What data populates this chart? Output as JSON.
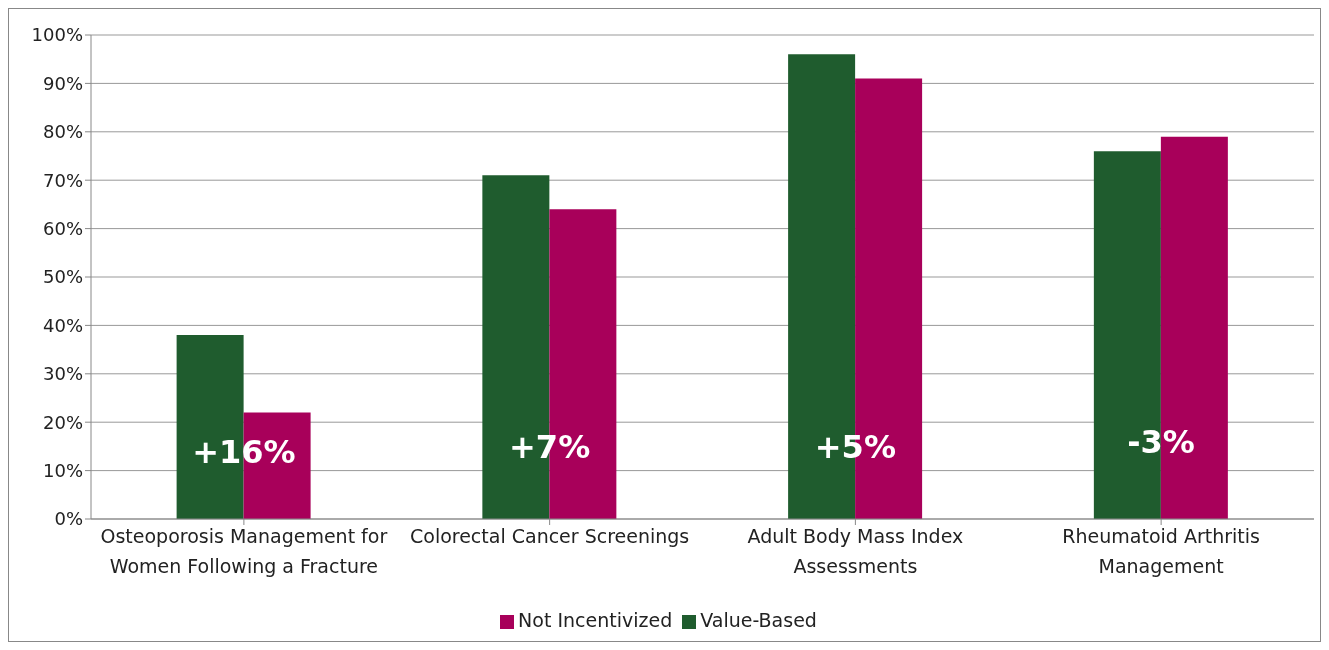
{
  "chart_data": {
    "type": "bar",
    "categories": [
      "Osteoporosis Management for Women Following a Fracture",
      "Colorectal Cancer Screenings",
      "Adult Body Mass Index Assessments",
      "Rheumatoid Arthritis Management"
    ],
    "series": [
      {
        "name": "Value-Based",
        "color": "#1f5c2e",
        "values": [
          38,
          71,
          96,
          76
        ]
      },
      {
        "name": "Not Incentivized",
        "color": "#a8005a",
        "values": [
          22,
          64,
          91,
          79
        ]
      }
    ],
    "ylim": [
      0,
      100
    ],
    "yticks": [
      {
        "value": 0,
        "label": "0%"
      },
      {
        "value": 10,
        "label": "10%"
      },
      {
        "value": 20,
        "label": "20%"
      },
      {
        "value": 30,
        "label": "30%"
      },
      {
        "value": 40,
        "label": "40%"
      },
      {
        "value": 50,
        "label": "50%"
      },
      {
        "value": 60,
        "label": "60%"
      },
      {
        "value": 70,
        "label": "70%"
      },
      {
        "value": 80,
        "label": "80%"
      },
      {
        "value": 90,
        "label": "90%"
      },
      {
        "value": 100,
        "label": "100%"
      }
    ],
    "annotations": [
      {
        "text": "+16%",
        "x": "Osteoporosis Management for Women Following a Fracture",
        "y": 14
      },
      {
        "text": "+7%",
        "x": "Colorectal Cancer Screenings",
        "y": 15
      },
      {
        "text": "+5%",
        "x": "Adult Body Mass Index Assessments",
        "y": 15
      },
      {
        "text": "-3%",
        "x": "Rheumatoid Arthritis Management",
        "y": 16
      }
    ],
    "grid": "y",
    "legend": "bottom"
  }
}
